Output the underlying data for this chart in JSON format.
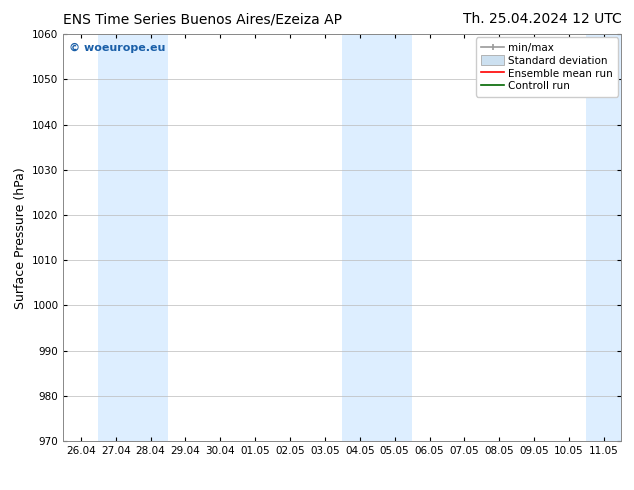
{
  "title_left": "ENS Time Series Buenos Aires/Ezeiza AP",
  "title_right": "Th. 25.04.2024 12 UTC",
  "ylabel": "Surface Pressure (hPa)",
  "ylim": [
    970,
    1060
  ],
  "yticks": [
    970,
    980,
    990,
    1000,
    1010,
    1020,
    1030,
    1040,
    1050,
    1060
  ],
  "x_tick_labels": [
    "26.04",
    "27.04",
    "28.04",
    "29.04",
    "30.04",
    "01.05",
    "02.05",
    "03.05",
    "04.05",
    "05.05",
    "06.05",
    "07.05",
    "08.05",
    "09.05",
    "10.05",
    "11.05"
  ],
  "x_tick_positions": [
    0,
    1,
    2,
    3,
    4,
    5,
    6,
    7,
    8,
    9,
    10,
    11,
    12,
    13,
    14,
    15
  ],
  "xlim": [
    -0.5,
    15.5
  ],
  "shaded_bands": [
    {
      "x_start": 0.5,
      "x_end": 2.5,
      "color": "#ddeeff"
    },
    {
      "x_start": 7.5,
      "x_end": 9.5,
      "color": "#ddeeff"
    },
    {
      "x_start": 14.5,
      "x_end": 15.5,
      "color": "#ddeeff"
    }
  ],
  "background_color": "#ffffff",
  "plot_bg_color": "#ffffff",
  "grid_color": "#bbbbbb",
  "watermark_text": "© woeurope.eu",
  "watermark_color": "#1a5fa8",
  "legend_items": [
    {
      "label": "min/max",
      "color": "#999999",
      "type": "minmax"
    },
    {
      "label": "Standard deviation",
      "color": "#cce0f0",
      "type": "stddev"
    },
    {
      "label": "Ensemble mean run",
      "color": "#ff0000",
      "type": "line"
    },
    {
      "label": "Controll run",
      "color": "#006600",
      "type": "line"
    }
  ],
  "title_fontsize": 10,
  "axis_label_fontsize": 9,
  "tick_fontsize": 7.5,
  "legend_fontsize": 7.5
}
